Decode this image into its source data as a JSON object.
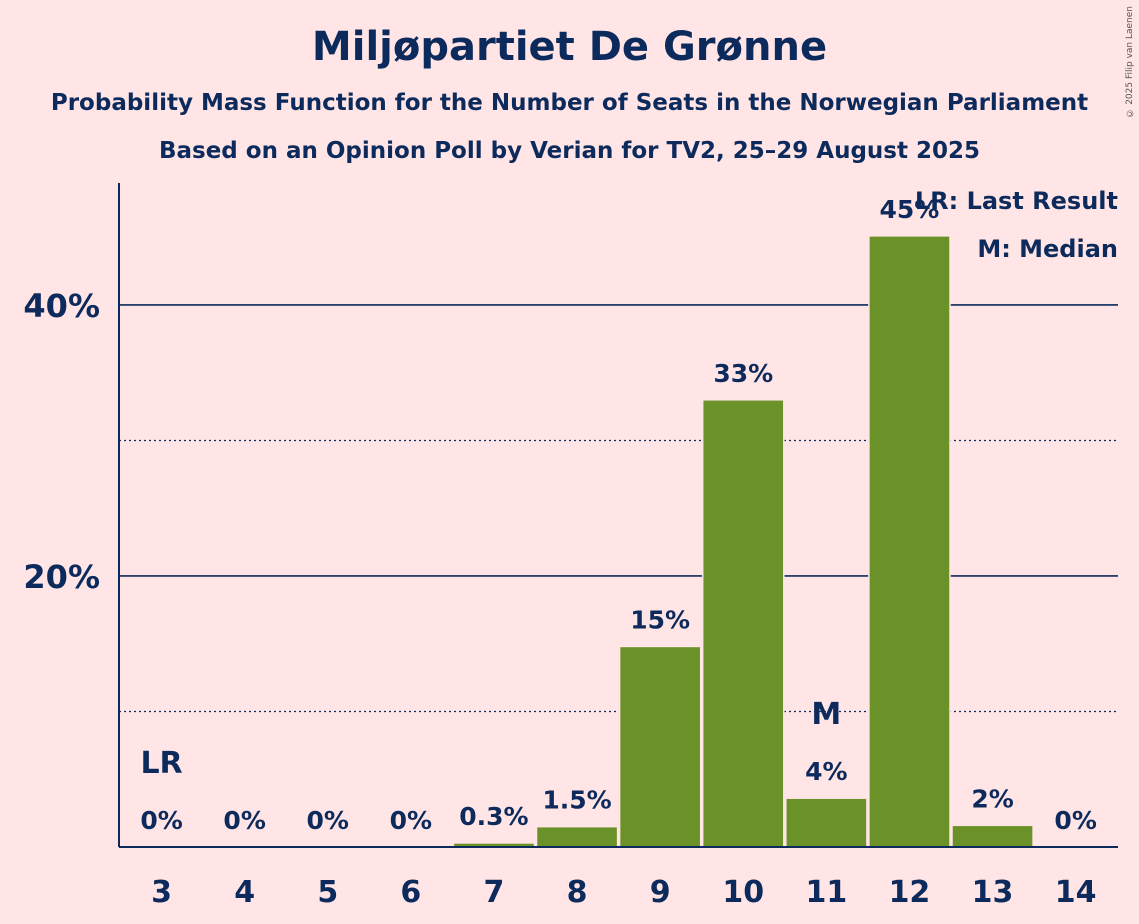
{
  "header": {
    "title": "Miljøpartiet De Grønne",
    "subtitle1": "Probability Mass Function for the Number of Seats in the Norwegian Parliament",
    "subtitle2": "Based on an Opinion Poll by Verian for TV2, 25–29 August 2025",
    "copyright": "© 2025 Filip van Laenen"
  },
  "colors": {
    "bar": "#6b9228",
    "text": "#0d2a5c",
    "background": "#ffe5e5"
  },
  "chart_data": {
    "type": "bar",
    "categories": [
      "3",
      "4",
      "5",
      "6",
      "7",
      "8",
      "9",
      "10",
      "11",
      "12",
      "13",
      "14"
    ],
    "values": [
      0,
      0,
      0,
      0,
      0.3,
      1.5,
      15,
      33,
      4,
      45,
      2,
      0
    ],
    "plot_values": [
      0,
      0,
      0,
      0,
      0.3,
      1.5,
      14.8,
      33.0,
      3.6,
      45.1,
      1.6,
      0
    ],
    "value_labels": [
      "0%",
      "0%",
      "0%",
      "0%",
      "0.3%",
      "1.5%",
      "15%",
      "33%",
      "4%",
      "45%",
      "2%",
      "0%"
    ],
    "ylim": [
      0,
      49
    ],
    "yticks": [
      {
        "value": 20,
        "label": "20%"
      },
      {
        "value": 40,
        "label": "40%"
      }
    ],
    "minor_gridlines": [
      10,
      30
    ],
    "markers": [
      {
        "category": "3",
        "label": "LR"
      },
      {
        "category": "11",
        "label": "M"
      }
    ],
    "legend": [
      "LR: Last Result",
      "M: Median"
    ],
    "legend_position": "top-right",
    "xlabel": "",
    "ylabel": ""
  }
}
